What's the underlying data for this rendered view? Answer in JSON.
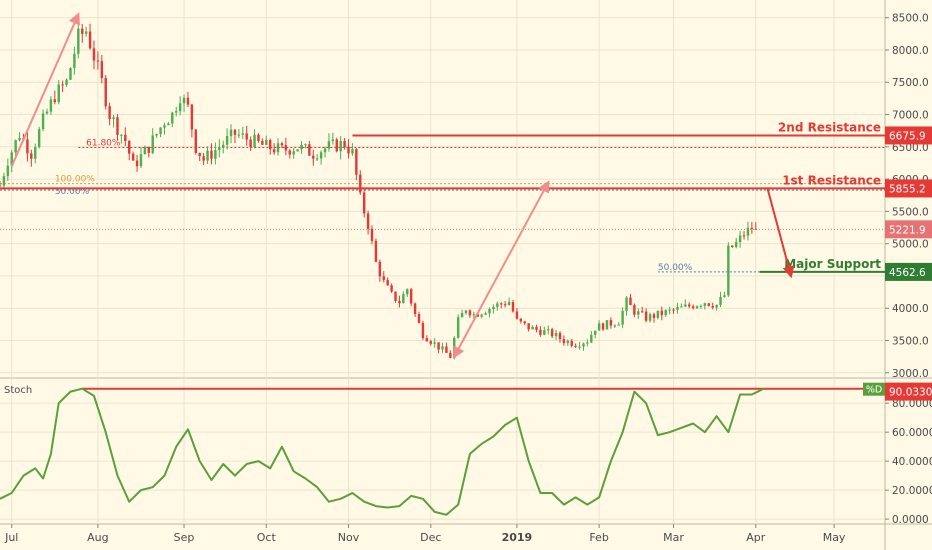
{
  "colors": {
    "background": "#fff9e6",
    "grid": "#ece4cc",
    "up": "#4caf50",
    "down": "#e53935",
    "resistance": "#e53935",
    "support": "#2e7d32",
    "stoch": "#5aa03a",
    "arrow": "#f08d8d",
    "fib618": "#e53935",
    "fib100": "#d6a23c",
    "fib50": "#5b7fa6",
    "current": "#e57373"
  },
  "chart_data": [
    {
      "type": "candlestick",
      "title": "",
      "price_axis": {
        "range": [
          2950,
          8650
        ],
        "ticks": [
          "3000.0",
          "3500.0",
          "4000.0",
          "4500.0",
          "5000.0",
          "5500.0",
          "6000.0",
          "6500.0",
          "7000.0",
          "7500.0",
          "8000.0",
          "8500.0"
        ]
      },
      "time_axis": {
        "labels": [
          "Jul",
          "Aug",
          "Sep",
          "Oct",
          "Nov",
          "Dec",
          "2019",
          "Feb",
          "Mar",
          "Apr",
          "May"
        ],
        "bold_label": "2019"
      },
      "levels": [
        {
          "name": "2nd Resistance",
          "value": 6675.9,
          "label": "6675.9",
          "kind": "resistance"
        },
        {
          "name": "1st Resistance",
          "value": 5855.2,
          "label": "5855.2",
          "kind": "resistance"
        },
        {
          "name": "Major Support",
          "value": 4562.6,
          "label": "4562.6",
          "kind": "support"
        }
      ],
      "current_price": {
        "value": 5221.9,
        "label": "5221.9"
      },
      "fib_levels": [
        {
          "label": "61.80%",
          "value": 6490
        },
        {
          "label": "100.00%",
          "value": 5930
        },
        {
          "label": "50.00%",
          "value": 5830
        },
        {
          "label": "50.00%",
          "value": 4562
        }
      ],
      "close_path": [
        {
          "t": 0,
          "v": 5900
        },
        {
          "t": 2,
          "v": 6300
        },
        {
          "t": 5,
          "v": 6700
        },
        {
          "t": 8,
          "v": 6400
        },
        {
          "t": 11,
          "v": 6900
        },
        {
          "t": 14,
          "v": 7300
        },
        {
          "t": 17,
          "v": 7500
        },
        {
          "t": 20,
          "v": 8200
        },
        {
          "t": 22,
          "v": 8300
        },
        {
          "t": 24,
          "v": 7900
        },
        {
          "t": 26,
          "v": 7500
        },
        {
          "t": 28,
          "v": 7000
        },
        {
          "t": 30,
          "v": 6800
        },
        {
          "t": 32,
          "v": 6600
        },
        {
          "t": 34,
          "v": 6200
        },
        {
          "t": 36,
          "v": 6350
        },
        {
          "t": 38,
          "v": 6500
        },
        {
          "t": 40,
          "v": 6700
        },
        {
          "t": 42,
          "v": 6900
        },
        {
          "t": 44,
          "v": 7000
        },
        {
          "t": 46,
          "v": 7300
        },
        {
          "t": 48,
          "v": 7100
        },
        {
          "t": 50,
          "v": 6500
        },
        {
          "t": 52,
          "v": 6300
        },
        {
          "t": 54,
          "v": 6400
        },
        {
          "t": 56,
          "v": 6500
        },
        {
          "t": 58,
          "v": 6600
        },
        {
          "t": 60,
          "v": 6700
        },
        {
          "t": 64,
          "v": 6600
        },
        {
          "t": 68,
          "v": 6500
        },
        {
          "t": 72,
          "v": 6450
        },
        {
          "t": 76,
          "v": 6500
        },
        {
          "t": 80,
          "v": 6400
        },
        {
          "t": 84,
          "v": 6500
        },
        {
          "t": 88,
          "v": 6550
        },
        {
          "t": 90,
          "v": 6400
        },
        {
          "t": 92,
          "v": 5700
        },
        {
          "t": 94,
          "v": 5300
        },
        {
          "t": 96,
          "v": 4700
        },
        {
          "t": 98,
          "v": 4400
        },
        {
          "t": 100,
          "v": 4200
        },
        {
          "t": 102,
          "v": 4100
        },
        {
          "t": 104,
          "v": 4300
        },
        {
          "t": 106,
          "v": 3900
        },
        {
          "t": 108,
          "v": 3600
        },
        {
          "t": 110,
          "v": 3500
        },
        {
          "t": 112,
          "v": 3400
        },
        {
          "t": 114,
          "v": 3300
        },
        {
          "t": 115,
          "v": 3250
        },
        {
          "t": 117,
          "v": 3800
        },
        {
          "t": 119,
          "v": 4000
        },
        {
          "t": 121,
          "v": 3900
        },
        {
          "t": 123,
          "v": 3950
        },
        {
          "t": 125,
          "v": 4000
        },
        {
          "t": 127,
          "v": 4050
        },
        {
          "t": 130,
          "v": 4100
        },
        {
          "t": 132,
          "v": 3800
        },
        {
          "t": 135,
          "v": 3700
        },
        {
          "t": 138,
          "v": 3650
        },
        {
          "t": 141,
          "v": 3600
        },
        {
          "t": 144,
          "v": 3500
        },
        {
          "t": 147,
          "v": 3450
        },
        {
          "t": 150,
          "v": 3500
        },
        {
          "t": 152,
          "v": 3700
        },
        {
          "t": 155,
          "v": 3750
        },
        {
          "t": 158,
          "v": 3800
        },
        {
          "t": 160,
          "v": 4100
        },
        {
          "t": 162,
          "v": 3950
        },
        {
          "t": 165,
          "v": 3850
        },
        {
          "t": 168,
          "v": 3900
        },
        {
          "t": 171,
          "v": 3950
        },
        {
          "t": 174,
          "v": 4000
        },
        {
          "t": 177,
          "v": 4050
        },
        {
          "t": 180,
          "v": 4100
        },
        {
          "t": 183,
          "v": 4050
        },
        {
          "t": 185,
          "v": 4200
        },
        {
          "t": 186,
          "v": 4900
        },
        {
          "t": 188,
          "v": 5000
        },
        {
          "t": 190,
          "v": 5150
        },
        {
          "t": 192,
          "v": 5250
        },
        {
          "t": 193,
          "v": 5221.9
        }
      ],
      "overlay_arrows": [
        {
          "from": {
            "t": 3,
            "v": 6200
          },
          "to": {
            "t": 20,
            "v": 8550
          },
          "color": "arrow"
        },
        {
          "from": {
            "t": 116,
            "v": 3250
          },
          "to": {
            "t": 140,
            "v": 5950
          },
          "color": "arrow"
        },
        {
          "from": {
            "t": 196,
            "v": 5855
          },
          "to": {
            "t": 202,
            "v": 4500
          },
          "color": "resistance"
        }
      ],
      "resistance_segments": [
        {
          "level": "2nd Resistance",
          "t_start": 90,
          "t_end": 226
        },
        {
          "level": "1st Resistance",
          "t_start": 0,
          "t_end": 226
        },
        {
          "level": "Major Support",
          "t_start": 194,
          "t_end": 226
        }
      ]
    },
    {
      "type": "line",
      "indicator": "Stoch",
      "label": "Stoch",
      "series_label": "%D",
      "current_label": "90.0330",
      "range": [
        -2,
        96
      ],
      "ticks": [
        "0.0000",
        "20.0000",
        "40.0000",
        "60.0000",
        "80.0000"
      ],
      "overbought_level": 90,
      "values": [
        {
          "t": 0,
          "v": 14
        },
        {
          "t": 3,
          "v": 18
        },
        {
          "t": 6,
          "v": 30
        },
        {
          "t": 9,
          "v": 35
        },
        {
          "t": 11,
          "v": 28
        },
        {
          "t": 13,
          "v": 45
        },
        {
          "t": 15,
          "v": 80
        },
        {
          "t": 18,
          "v": 88
        },
        {
          "t": 21,
          "v": 90
        },
        {
          "t": 24,
          "v": 85
        },
        {
          "t": 27,
          "v": 60
        },
        {
          "t": 30,
          "v": 30
        },
        {
          "t": 33,
          "v": 12
        },
        {
          "t": 36,
          "v": 20
        },
        {
          "t": 39,
          "v": 22
        },
        {
          "t": 42,
          "v": 30
        },
        {
          "t": 45,
          "v": 50
        },
        {
          "t": 48,
          "v": 62
        },
        {
          "t": 51,
          "v": 40
        },
        {
          "t": 54,
          "v": 27
        },
        {
          "t": 57,
          "v": 38
        },
        {
          "t": 60,
          "v": 30
        },
        {
          "t": 63,
          "v": 38
        },
        {
          "t": 66,
          "v": 40
        },
        {
          "t": 69,
          "v": 35
        },
        {
          "t": 72,
          "v": 50
        },
        {
          "t": 75,
          "v": 33
        },
        {
          "t": 78,
          "v": 28
        },
        {
          "t": 81,
          "v": 22
        },
        {
          "t": 84,
          "v": 12
        },
        {
          "t": 87,
          "v": 14
        },
        {
          "t": 90,
          "v": 18
        },
        {
          "t": 93,
          "v": 12
        },
        {
          "t": 96,
          "v": 9
        },
        {
          "t": 99,
          "v": 8
        },
        {
          "t": 102,
          "v": 9
        },
        {
          "t": 105,
          "v": 16
        },
        {
          "t": 108,
          "v": 14
        },
        {
          "t": 111,
          "v": 5
        },
        {
          "t": 114,
          "v": 3
        },
        {
          "t": 117,
          "v": 10
        },
        {
          "t": 120,
          "v": 45
        },
        {
          "t": 123,
          "v": 52
        },
        {
          "t": 126,
          "v": 57
        },
        {
          "t": 129,
          "v": 65
        },
        {
          "t": 132,
          "v": 70
        },
        {
          "t": 135,
          "v": 40
        },
        {
          "t": 138,
          "v": 18
        },
        {
          "t": 141,
          "v": 18
        },
        {
          "t": 144,
          "v": 10
        },
        {
          "t": 147,
          "v": 15
        },
        {
          "t": 150,
          "v": 10
        },
        {
          "t": 153,
          "v": 15
        },
        {
          "t": 156,
          "v": 40
        },
        {
          "t": 159,
          "v": 60
        },
        {
          "t": 162,
          "v": 88
        },
        {
          "t": 165,
          "v": 80
        },
        {
          "t": 168,
          "v": 58
        },
        {
          "t": 171,
          "v": 60
        },
        {
          "t": 174,
          "v": 63
        },
        {
          "t": 177,
          "v": 66
        },
        {
          "t": 180,
          "v": 60
        },
        {
          "t": 183,
          "v": 71
        },
        {
          "t": 186,
          "v": 60
        },
        {
          "t": 189,
          "v": 86
        },
        {
          "t": 192,
          "v": 86
        },
        {
          "t": 195,
          "v": 90
        }
      ]
    }
  ]
}
